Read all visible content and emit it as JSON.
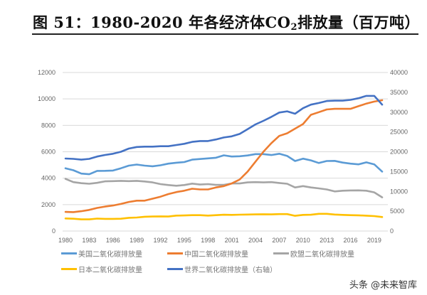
{
  "title": {
    "prefix": "图 51：1980-2020 年各经济体CO",
    "sub": "2",
    "suffix": "排放量（百万吨）"
  },
  "watermark": "头条 @未来智库",
  "chart_data": {
    "type": "line",
    "title": "图 51：1980-2020 年各经济体CO2排放量（百万吨）",
    "x": [
      1980,
      1981,
      1982,
      1983,
      1984,
      1985,
      1986,
      1987,
      1988,
      1989,
      1990,
      1991,
      1992,
      1993,
      1994,
      1995,
      1996,
      1997,
      1998,
      1999,
      2000,
      2001,
      2002,
      2003,
      2004,
      2005,
      2006,
      2007,
      2008,
      2009,
      2010,
      2011,
      2012,
      2013,
      2014,
      2015,
      2016,
      2017,
      2018,
      2019,
      2020
    ],
    "x_tick_labels": [
      "1980",
      "1983",
      "1986",
      "1989",
      "1992",
      "1995",
      "1998",
      "2001",
      "2004",
      "2007",
      "2010",
      "2013",
      "2016",
      "2019"
    ],
    "y_left": {
      "range": [
        0,
        12000
      ],
      "ticks": [
        "0",
        "2000",
        "4000",
        "6000",
        "8000",
        "10000",
        "12000"
      ]
    },
    "y_right": {
      "range": [
        0,
        40000
      ],
      "ticks": [
        "0",
        "5000",
        "10000",
        "15000",
        "20000",
        "25000",
        "30000",
        "35000",
        "40000"
      ]
    },
    "grid": true,
    "legend_position": "bottom",
    "series": [
      {
        "name": "美国二氧化碳排放量",
        "color": "#5b9bd5",
        "axis": "left",
        "values": [
          4750,
          4600,
          4350,
          4300,
          4550,
          4560,
          4580,
          4750,
          4950,
          5030,
          4950,
          4900,
          4980,
          5100,
          5170,
          5220,
          5400,
          5450,
          5500,
          5550,
          5730,
          5640,
          5660,
          5720,
          5820,
          5820,
          5750,
          5850,
          5680,
          5300,
          5480,
          5350,
          5150,
          5300,
          5310,
          5180,
          5100,
          5050,
          5200,
          5050,
          4500
        ]
      },
      {
        "name": "中国二氧化碳排放量",
        "color": "#ed7d31",
        "axis": "left",
        "values": [
          1450,
          1430,
          1500,
          1600,
          1750,
          1850,
          1930,
          2050,
          2200,
          2300,
          2300,
          2450,
          2600,
          2800,
          2950,
          3050,
          3200,
          3150,
          3150,
          3300,
          3400,
          3600,
          3900,
          4500,
          5250,
          6000,
          6650,
          7200,
          7400,
          7750,
          8100,
          8800,
          9000,
          9200,
          9250,
          9250,
          9250,
          9450,
          9650,
          9800,
          9900
        ]
      },
      {
        "name": "欧盟二氧化碳排放量",
        "color": "#a5a5a5",
        "axis": "left",
        "values": [
          3950,
          3700,
          3620,
          3580,
          3650,
          3760,
          3780,
          3800,
          3780,
          3800,
          3750,
          3680,
          3550,
          3480,
          3430,
          3480,
          3590,
          3520,
          3550,
          3490,
          3500,
          3600,
          3600,
          3680,
          3700,
          3680,
          3700,
          3640,
          3580,
          3300,
          3400,
          3300,
          3230,
          3150,
          3000,
          3050,
          3070,
          3080,
          3050,
          2930,
          2550
        ]
      },
      {
        "name": "日本二氧化碳排放量",
        "color": "#ffc000",
        "axis": "left",
        "values": [
          950,
          930,
          880,
          880,
          940,
          920,
          920,
          930,
          1000,
          1020,
          1080,
          1100,
          1110,
          1100,
          1170,
          1180,
          1200,
          1200,
          1170,
          1200,
          1230,
          1220,
          1240,
          1250,
          1260,
          1270,
          1260,
          1280,
          1280,
          1150,
          1220,
          1230,
          1300,
          1300,
          1250,
          1220,
          1200,
          1190,
          1160,
          1130,
          1060
        ]
      },
      {
        "name": "世界二氧化碳排放量（右轴）",
        "color": "#4472c4",
        "axis": "right",
        "values": [
          18300,
          18200,
          18000,
          18200,
          18800,
          19200,
          19500,
          20000,
          20800,
          21200,
          21300,
          21300,
          21400,
          21400,
          21700,
          22000,
          22500,
          22700,
          22700,
          23100,
          23600,
          23900,
          24500,
          25700,
          26900,
          27800,
          28800,
          29900,
          30200,
          29600,
          31000,
          31900,
          32300,
          32800,
          32900,
          32900,
          33100,
          33500,
          34100,
          34100,
          31900
        ]
      }
    ]
  }
}
